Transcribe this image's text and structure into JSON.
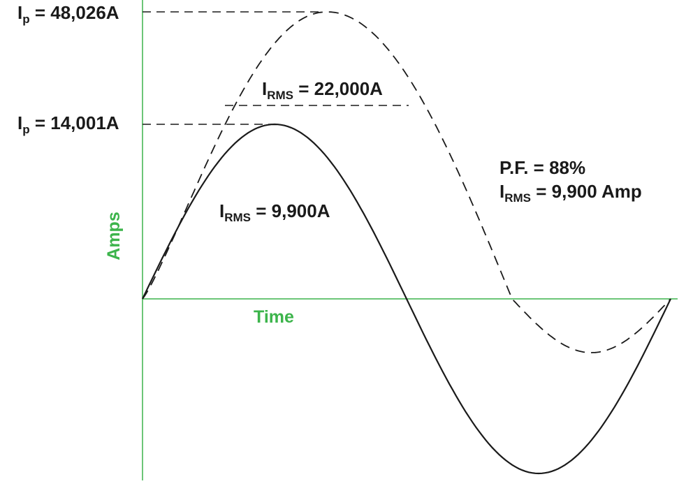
{
  "chart_data": {
    "type": "line",
    "title": "",
    "xlabel": "Time",
    "ylabel": "Amps",
    "series": [
      {
        "style": "solid",
        "peak_label": {
          "main": "I",
          "sub": "p",
          "rest": " = 14,001A"
        },
        "rms_label": {
          "main": "I",
          "sub": "RMS",
          "rest": " = 9,900A"
        }
      },
      {
        "style": "dashed",
        "peak_label": {
          "main": "I",
          "sub": "p",
          "rest": " = 48,026A"
        },
        "rms_label": {
          "main": "I",
          "sub": "RMS",
          "rest": " = 22,000A"
        }
      }
    ],
    "annotations": {
      "power_factor": "P.F. = 88%",
      "rms_main": "I",
      "rms_sub": "RMS",
      "rms_rest": " = 9,900 Amp"
    },
    "grid": false
  },
  "colors": {
    "axis": "#3cb44b",
    "axis_label": "#3cb44b",
    "curve": "#1a1a1a",
    "text": "#1a1a1a"
  }
}
